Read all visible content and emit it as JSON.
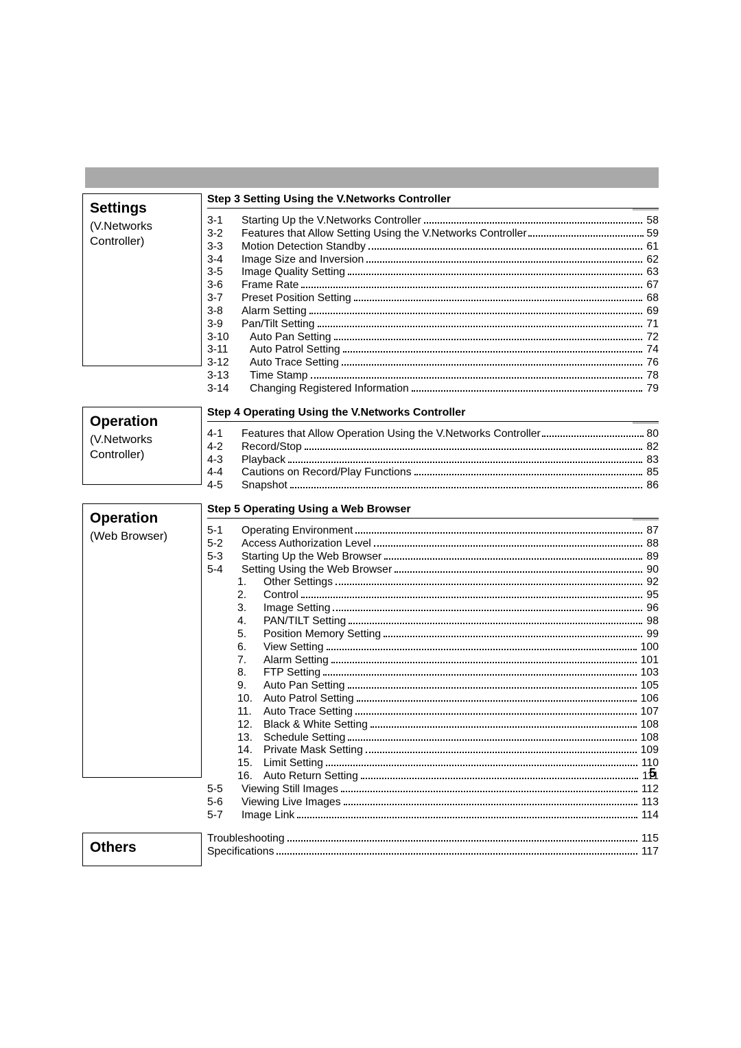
{
  "pageNumber": "5",
  "sections": [
    {
      "heading": "Settings",
      "sub": "(V.Networks Controller)",
      "boxClass": "box-settings",
      "spacer": 0
    },
    {
      "heading": "Operation",
      "sub": "(V.Networks Controller)",
      "boxClass": "box-op1",
      "spacer": 0
    },
    {
      "heading": "Operation",
      "sub": "(Web Browser)",
      "boxClass": "box-op2",
      "spacer": 0
    },
    {
      "heading": "Others",
      "sub": "",
      "boxClass": "box-others",
      "spacer": 0
    }
  ],
  "groups": [
    {
      "header": "Step 3 Setting Using the V.Networks Controller",
      "numClass": "",
      "rows": [
        {
          "num": "3-1",
          "title": "Starting Up the V.Networks Controller",
          "page": "58"
        },
        {
          "num": "3-2",
          "title": "Features that Allow Setting Using the V.Networks Controller ",
          "page": "59",
          "tightDots": true
        },
        {
          "num": "3-3",
          "title": "Motion Detection Standby",
          "page": "61"
        },
        {
          "num": "3-4",
          "title": "Image Size and Inversion",
          "page": "62"
        },
        {
          "num": "3-5",
          "title": "Image Quality Setting",
          "page": "63"
        },
        {
          "num": "3-6",
          "title": "Frame Rate",
          "page": "67"
        },
        {
          "num": "3-7",
          "title": "Preset Position Setting",
          "page": "68"
        },
        {
          "num": "3-8",
          "title": "Alarm Setting",
          "page": "69"
        },
        {
          "num": "3-9",
          "title": "Pan/Tilt Setting",
          "page": "71"
        },
        {
          "num": "3-10",
          "title": "Auto Pan Setting",
          "page": "72",
          "wide": true
        },
        {
          "num": "3-11",
          "title": "Auto Patrol Setting",
          "page": "74",
          "wide": true
        },
        {
          "num": "3-12",
          "title": "Auto Trace Setting",
          "page": "76",
          "wide": true
        },
        {
          "num": "3-13",
          "title": "Time Stamp",
          "page": "78",
          "wide": true
        },
        {
          "num": "3-14",
          "title": "Changing Registered Information",
          "page": "79",
          "wide": true
        }
      ]
    },
    {
      "header": "Step 4 Operating Using the V.Networks Controller",
      "numClass": "",
      "rows": [
        {
          "num": "4-1",
          "title": "Features that Allow Operation Using the V.Networks Controller",
          "page": "80",
          "tightDots": true
        },
        {
          "num": "4-2",
          "title": "Record/Stop",
          "page": "82"
        },
        {
          "num": "4-3",
          "title": "Playback",
          "page": "83"
        },
        {
          "num": "4-4",
          "title": "Cautions on Record/Play Functions",
          "page": "85"
        },
        {
          "num": "4-5",
          "title": "Snapshot",
          "page": "86"
        }
      ]
    },
    {
      "header": "Step 5 Operating Using a Web Browser",
      "numClass": "",
      "rows": [
        {
          "num": "5-1",
          "title": "Operating Environment",
          "page": "87"
        },
        {
          "num": "5-2",
          "title": "Access Authorization Level",
          "page": "88"
        },
        {
          "num": "5-3",
          "title": "Starting Up the Web Browser",
          "page": "89"
        },
        {
          "num": "5-4",
          "title": "Setting Using the Web Browser",
          "page": "90"
        },
        {
          "sub": true,
          "num": "1.",
          "title": "Other Settings",
          "page": "92"
        },
        {
          "sub": true,
          "num": "2.",
          "title": "Control",
          "page": "95"
        },
        {
          "sub": true,
          "num": "3.",
          "title": "Image Setting",
          "page": "96"
        },
        {
          "sub": true,
          "num": "4.",
          "title": "PAN/TILT Setting",
          "page": "98"
        },
        {
          "sub": true,
          "num": "5.",
          "title": "Position Memory Setting",
          "page": "99"
        },
        {
          "sub": true,
          "num": "6.",
          "title": "View Setting",
          "page": "100"
        },
        {
          "sub": true,
          "num": "7.",
          "title": "Alarm Setting",
          "page": "101"
        },
        {
          "sub": true,
          "num": "8.",
          "title": "FTP Setting",
          "page": "103"
        },
        {
          "sub": true,
          "num": "9.",
          "title": "Auto Pan Setting",
          "page": "105"
        },
        {
          "sub": true,
          "num": "10.",
          "title": "Auto Patrol Setting",
          "page": "106"
        },
        {
          "sub": true,
          "num": "11.",
          "title": "Auto Trace Setting",
          "page": "107"
        },
        {
          "sub": true,
          "num": "12.",
          "title": "Black & White Setting",
          "page": "108"
        },
        {
          "sub": true,
          "num": "13.",
          "title": "Schedule Setting",
          "page": "108"
        },
        {
          "sub": true,
          "num": "14.",
          "title": "Private Mask Setting",
          "page": "109"
        },
        {
          "sub": true,
          "num": "15.",
          "title": "Limit Setting",
          "page": "110"
        },
        {
          "sub": true,
          "num": "16.",
          "title": "Auto Return Setting",
          "page": "111"
        },
        {
          "num": "5-5",
          "title": "Viewing Still Images",
          "page": "112"
        },
        {
          "num": "5-6",
          "title": "Viewing Live Images",
          "page": "113"
        },
        {
          "num": "5-7",
          "title": "Image Link",
          "page": "114"
        }
      ]
    }
  ],
  "others": [
    {
      "title": "Troubleshooting",
      "page": "115"
    },
    {
      "title": "Specifications",
      "page": "117"
    }
  ]
}
